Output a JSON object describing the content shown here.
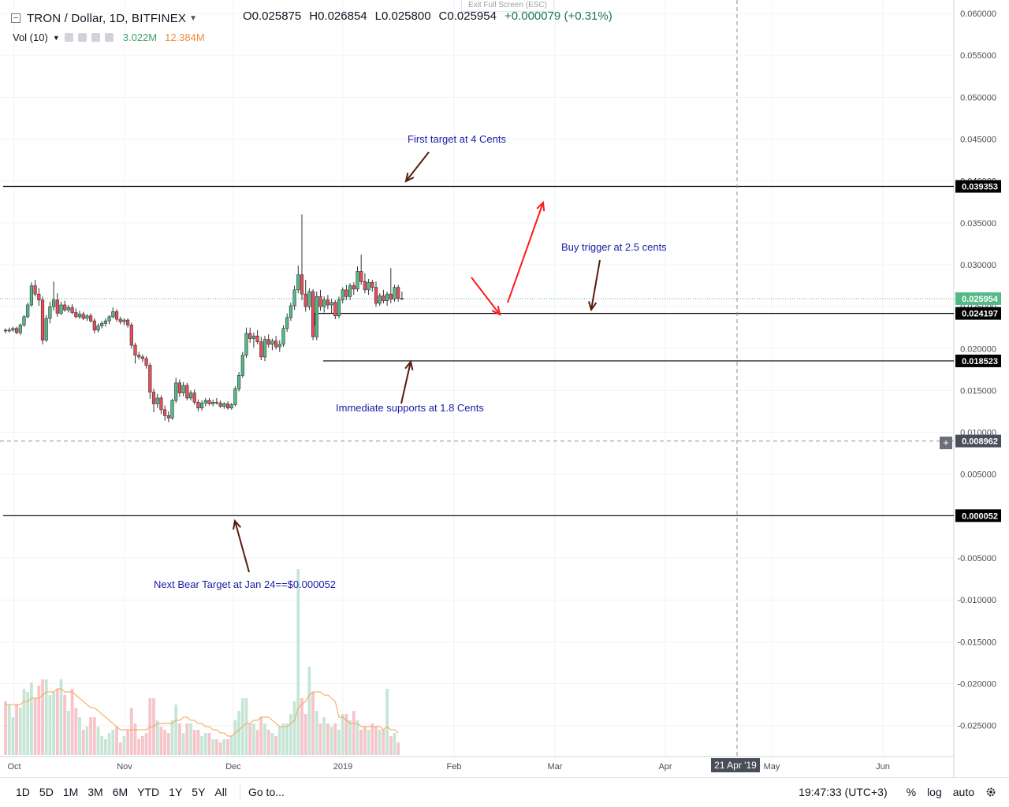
{
  "header": {
    "symbol": "TRON / Dollar, 1D, BITFINEX",
    "open": "O0.025875",
    "high": "H0.026854",
    "low": "L0.025800",
    "close": "C0.025954",
    "change": "+0.000079 (+0.31%)",
    "exit_fullscreen": "Exit Full Screen (ESC)"
  },
  "volume_legend": {
    "label": "Vol (10)",
    "vol_value": "3.022M",
    "ma_value": "12.384M"
  },
  "annotations": {
    "first_target": "First target at 4 Cents",
    "buy_trigger": "Buy trigger at 2.5 cents",
    "supports": "Immediate supports at 1.8 Cents",
    "bear_target": "Next Bear Target at Jan 24==$0.000052"
  },
  "price_badges": {
    "resistance": "0.039353",
    "current": "0.025954",
    "trigger": "0.024197",
    "support": "0.018523",
    "crosshair": "0.008962",
    "bear": "0.000052"
  },
  "time_badge": "21 Apr '19",
  "bottom_bar": {
    "ranges": [
      "1D",
      "5D",
      "1M",
      "3M",
      "6M",
      "YTD",
      "1Y",
      "5Y",
      "All"
    ],
    "goto": "Go to...",
    "clock": "19:47:33 (UTC+3)",
    "percent": "%",
    "log": "log",
    "auto": "auto"
  },
  "colors": {
    "up": "#53b987",
    "down": "#eb4d5c",
    "vol_up": "#c5e6d6",
    "vol_down": "#f7c4ca",
    "ma": "#f6a24e",
    "annotation_text": "#1a1aa6",
    "arrow_dark": "#5a1a0a",
    "arrow_red": "#ff1a1a"
  },
  "chart_data": {
    "type": "candlestick",
    "title": "TRON / Dollar, 1D, BITFINEX",
    "y_ticks": [
      0.06,
      0.055,
      0.05,
      0.045,
      0.04,
      0.035,
      0.03,
      0.025,
      0.02,
      0.015,
      0.01,
      0.005,
      0.0,
      -0.005,
      -0.01,
      -0.015,
      -0.02,
      -0.025
    ],
    "y_tick_labels": [
      "0.060000",
      "0.055000",
      "0.050000",
      "0.045000",
      "0.040000",
      "0.035000",
      "0.030000",
      "0.025000",
      "0.020000",
      "0.015000",
      "0.010000",
      "0.005000",
      "0.000000",
      "-0.005000",
      "-0.010000",
      "-0.015000",
      "-0.020000",
      "-0.025000"
    ],
    "x_labels": [
      "Oct",
      "Nov",
      "Dec",
      "2019",
      "Feb",
      "Mar",
      "Apr",
      "May",
      "Jun"
    ],
    "ylim": [
      -0.0287,
      0.0616
    ],
    "horizontal_levels": [
      {
        "name": "resistance",
        "value": 0.039353
      },
      {
        "name": "trigger",
        "value": 0.024197
      },
      {
        "name": "support",
        "value": 0.018523
      },
      {
        "name": "bear",
        "value": 5.2e-05
      }
    ],
    "crosshair_value": 0.008962,
    "last_price": 0.025954,
    "candles": [
      [
        0.0222,
        0.0224,
        0.0218,
        0.0221
      ],
      [
        0.0221,
        0.0225,
        0.0219,
        0.0222
      ],
      [
        0.0222,
        0.0226,
        0.022,
        0.0224
      ],
      [
        0.0224,
        0.0226,
        0.0217,
        0.0219
      ],
      [
        0.0219,
        0.023,
        0.0216,
        0.0228
      ],
      [
        0.0228,
        0.024,
        0.0226,
        0.0238
      ],
      [
        0.0238,
        0.0255,
        0.0236,
        0.0252
      ],
      [
        0.0252,
        0.0279,
        0.025,
        0.0275
      ],
      [
        0.0275,
        0.0282,
        0.0262,
        0.0265
      ],
      [
        0.0265,
        0.0272,
        0.0251,
        0.0258
      ],
      [
        0.0258,
        0.0262,
        0.0205,
        0.021
      ],
      [
        0.021,
        0.024,
        0.0208,
        0.0236
      ],
      [
        0.0236,
        0.0256,
        0.023,
        0.025
      ],
      [
        0.025,
        0.028,
        0.0245,
        0.0258
      ],
      [
        0.0258,
        0.0266,
        0.0238,
        0.0242
      ],
      [
        0.0242,
        0.0256,
        0.024,
        0.0252
      ],
      [
        0.0252,
        0.0257,
        0.0244,
        0.0246
      ],
      [
        0.0246,
        0.0252,
        0.0243,
        0.0249
      ],
      [
        0.0249,
        0.0253,
        0.0241,
        0.0243
      ],
      [
        0.0243,
        0.0248,
        0.0236,
        0.0238
      ],
      [
        0.0238,
        0.0245,
        0.0235,
        0.0241
      ],
      [
        0.0241,
        0.0244,
        0.0234,
        0.0236
      ],
      [
        0.0236,
        0.0241,
        0.0233,
        0.0239
      ],
      [
        0.0239,
        0.0242,
        0.0231,
        0.0233
      ],
      [
        0.0233,
        0.0236,
        0.0218,
        0.0222
      ],
      [
        0.0222,
        0.023,
        0.0219,
        0.0227
      ],
      [
        0.0227,
        0.0233,
        0.0224,
        0.023
      ],
      [
        0.023,
        0.0236,
        0.0226,
        0.0233
      ],
      [
        0.0233,
        0.024,
        0.0229,
        0.0238
      ],
      [
        0.0238,
        0.0249,
        0.0236,
        0.0244
      ],
      [
        0.0244,
        0.0247,
        0.0232,
        0.0235
      ],
      [
        0.0235,
        0.0238,
        0.0229,
        0.0232
      ],
      [
        0.0232,
        0.0236,
        0.0228,
        0.0234
      ],
      [
        0.0234,
        0.0236,
        0.0225,
        0.0228
      ],
      [
        0.0228,
        0.0231,
        0.02,
        0.0204
      ],
      [
        0.0204,
        0.0207,
        0.0182,
        0.0192
      ],
      [
        0.0192,
        0.0196,
        0.0187,
        0.019
      ],
      [
        0.019,
        0.0193,
        0.0184,
        0.0188
      ],
      [
        0.0188,
        0.0191,
        0.0176,
        0.018
      ],
      [
        0.018,
        0.0183,
        0.014,
        0.0148
      ],
      [
        0.0148,
        0.0152,
        0.0124,
        0.0134
      ],
      [
        0.0134,
        0.0146,
        0.0129,
        0.0141
      ],
      [
        0.0141,
        0.0144,
        0.0122,
        0.0127
      ],
      [
        0.0127,
        0.0132,
        0.0114,
        0.012
      ],
      [
        0.012,
        0.0125,
        0.0112,
        0.0117
      ],
      [
        0.0117,
        0.014,
        0.0115,
        0.0138
      ],
      [
        0.0138,
        0.0165,
        0.0135,
        0.0159
      ],
      [
        0.0159,
        0.0163,
        0.0142,
        0.0147
      ],
      [
        0.0147,
        0.016,
        0.0143,
        0.0156
      ],
      [
        0.0156,
        0.0159,
        0.0138,
        0.0141
      ],
      [
        0.0141,
        0.015,
        0.0138,
        0.0147
      ],
      [
        0.0147,
        0.0151,
        0.0133,
        0.0136
      ],
      [
        0.0136,
        0.0139,
        0.0125,
        0.0129
      ],
      [
        0.0129,
        0.0138,
        0.0126,
        0.0135
      ],
      [
        0.0135,
        0.0141,
        0.0131,
        0.0138
      ],
      [
        0.0138,
        0.0141,
        0.0132,
        0.0134
      ],
      [
        0.0134,
        0.0139,
        0.0131,
        0.0136
      ],
      [
        0.0136,
        0.0141,
        0.0133,
        0.0135
      ],
      [
        0.0135,
        0.0138,
        0.0129,
        0.0131
      ],
      [
        0.0131,
        0.0136,
        0.0128,
        0.0134
      ],
      [
        0.0134,
        0.0137,
        0.0127,
        0.0129
      ],
      [
        0.0129,
        0.0135,
        0.0127,
        0.0133
      ],
      [
        0.0133,
        0.0155,
        0.0131,
        0.0152
      ],
      [
        0.0152,
        0.0172,
        0.0149,
        0.0168
      ],
      [
        0.0168,
        0.0196,
        0.0165,
        0.0192
      ],
      [
        0.0192,
        0.0225,
        0.0189,
        0.0218
      ],
      [
        0.0218,
        0.0225,
        0.0207,
        0.0212
      ],
      [
        0.0212,
        0.0219,
        0.0201,
        0.0215
      ],
      [
        0.0215,
        0.0222,
        0.0205,
        0.0208
      ],
      [
        0.0208,
        0.0214,
        0.0186,
        0.019
      ],
      [
        0.019,
        0.0215,
        0.0185,
        0.0211
      ],
      [
        0.0211,
        0.0217,
        0.0201,
        0.0205
      ],
      [
        0.0205,
        0.0212,
        0.0198,
        0.0209
      ],
      [
        0.0209,
        0.0215,
        0.0199,
        0.0202
      ],
      [
        0.0202,
        0.021,
        0.0196,
        0.0205
      ],
      [
        0.0205,
        0.0228,
        0.0202,
        0.0224
      ],
      [
        0.0224,
        0.0242,
        0.022,
        0.0237
      ],
      [
        0.0237,
        0.0255,
        0.0233,
        0.0251
      ],
      [
        0.0251,
        0.0275,
        0.0246,
        0.027
      ],
      [
        0.027,
        0.0299,
        0.0266,
        0.0288
      ],
      [
        0.0288,
        0.036,
        0.0258,
        0.0265
      ],
      [
        0.0265,
        0.0282,
        0.0244,
        0.025
      ],
      [
        0.025,
        0.0272,
        0.0246,
        0.0268
      ],
      [
        0.0268,
        0.0271,
        0.021,
        0.0214
      ],
      [
        0.0214,
        0.0268,
        0.021,
        0.0262
      ],
      [
        0.0262,
        0.027,
        0.0245,
        0.025
      ],
      [
        0.025,
        0.0262,
        0.0243,
        0.0258
      ],
      [
        0.0258,
        0.0264,
        0.0247,
        0.0252
      ],
      [
        0.0252,
        0.0259,
        0.0242,
        0.0255
      ],
      [
        0.0255,
        0.0258,
        0.0235,
        0.0239
      ],
      [
        0.0239,
        0.0262,
        0.0236,
        0.0258
      ],
      [
        0.0258,
        0.0273,
        0.0254,
        0.027
      ],
      [
        0.027,
        0.0276,
        0.0258,
        0.0262
      ],
      [
        0.0262,
        0.0278,
        0.0258,
        0.0275
      ],
      [
        0.0275,
        0.0279,
        0.0264,
        0.0271
      ],
      [
        0.0271,
        0.0298,
        0.0268,
        0.0292
      ],
      [
        0.0292,
        0.0312,
        0.0276,
        0.028
      ],
      [
        0.028,
        0.029,
        0.0266,
        0.027
      ],
      [
        0.027,
        0.0283,
        0.0264,
        0.0279
      ],
      [
        0.0279,
        0.0282,
        0.0268,
        0.0273
      ],
      [
        0.0273,
        0.028,
        0.025,
        0.0254
      ],
      [
        0.0254,
        0.0266,
        0.0251,
        0.0263
      ],
      [
        0.0263,
        0.027,
        0.0254,
        0.0257
      ],
      [
        0.0257,
        0.0268,
        0.0251,
        0.0265
      ],
      [
        0.0265,
        0.0296,
        0.0254,
        0.0259
      ],
      [
        0.0259,
        0.0276,
        0.0256,
        0.0273
      ],
      [
        0.0273,
        0.0276,
        0.0256,
        0.026
      ],
      [
        0.026,
        0.0268,
        0.0258,
        0.026
      ]
    ],
    "volume": [
      0.17,
      0.16,
      0.12,
      0.16,
      0.15,
      0.21,
      0.2,
      0.23,
      0.18,
      0.22,
      0.24,
      0.24,
      0.19,
      0.2,
      0.21,
      0.24,
      0.19,
      0.14,
      0.21,
      0.15,
      0.12,
      0.08,
      0.09,
      0.12,
      0.12,
      0.09,
      0.06,
      0.05,
      0.07,
      0.08,
      0.09,
      0.04,
      0.06,
      0.08,
      0.15,
      0.1,
      0.05,
      0.06,
      0.07,
      0.18,
      0.18,
      0.11,
      0.09,
      0.08,
      0.07,
      0.11,
      0.16,
      0.1,
      0.07,
      0.1,
      0.1,
      0.08,
      0.08,
      0.06,
      0.07,
      0.07,
      0.05,
      0.05,
      0.04,
      0.05,
      0.05,
      0.06,
      0.11,
      0.14,
      0.18,
      0.18,
      0.1,
      0.1,
      0.08,
      0.12,
      0.1,
      0.08,
      0.07,
      0.06,
      0.09,
      0.1,
      0.1,
      0.13,
      0.17,
      0.59,
      0.18,
      0.13,
      0.28,
      0.2,
      0.14,
      0.1,
      0.12,
      0.1,
      0.09,
      0.1,
      0.08,
      0.13,
      0.13,
      0.11,
      0.14,
      0.11,
      0.08,
      0.09,
      0.08,
      0.1,
      0.09,
      0.08,
      0.08,
      0.21,
      0.06,
      0.07,
      0.04
    ],
    "volume_ma": [
      0.16,
      0.16,
      0.16,
      0.16,
      0.16,
      0.17,
      0.17,
      0.18,
      0.18,
      0.18,
      0.19,
      0.2,
      0.2,
      0.2,
      0.21,
      0.21,
      0.2,
      0.2,
      0.2,
      0.19,
      0.18,
      0.17,
      0.16,
      0.15,
      0.15,
      0.14,
      0.13,
      0.12,
      0.11,
      0.1,
      0.09,
      0.08,
      0.08,
      0.08,
      0.08,
      0.08,
      0.08,
      0.08,
      0.08,
      0.09,
      0.09,
      0.1,
      0.1,
      0.1,
      0.1,
      0.1,
      0.11,
      0.11,
      0.12,
      0.12,
      0.11,
      0.11,
      0.1,
      0.1,
      0.09,
      0.09,
      0.08,
      0.08,
      0.07,
      0.07,
      0.06,
      0.06,
      0.07,
      0.08,
      0.09,
      0.1,
      0.1,
      0.11,
      0.11,
      0.12,
      0.12,
      0.12,
      0.11,
      0.1,
      0.09,
      0.09,
      0.09,
      0.1,
      0.11,
      0.15,
      0.16,
      0.17,
      0.19,
      0.2,
      0.2,
      0.2,
      0.19,
      0.19,
      0.18,
      0.17,
      0.12,
      0.12,
      0.11,
      0.1,
      0.1,
      0.1,
      0.09,
      0.09,
      0.09,
      0.09,
      0.09,
      0.09,
      0.08,
      0.09,
      0.08,
      0.08,
      0.07
    ]
  }
}
